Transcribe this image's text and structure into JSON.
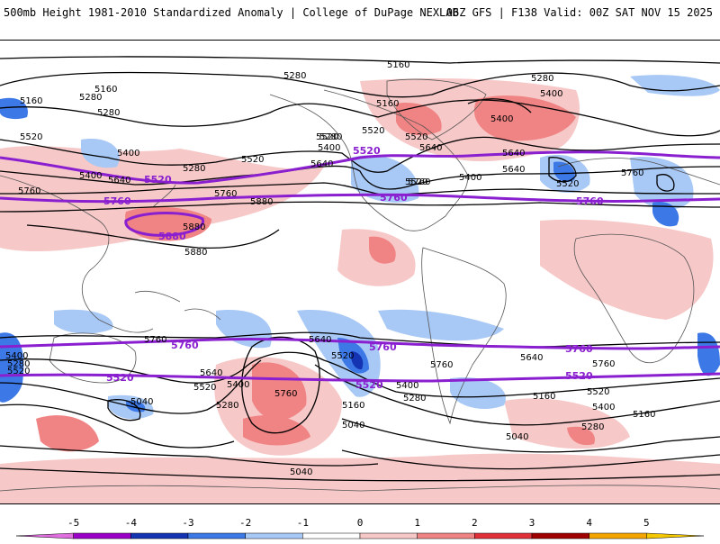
{
  "header": {
    "title": "500mb Height 1981-2010 Standardized Anomaly | College of DuPage NEXLAB",
    "run_info": "06Z GFS | F138 Valid: 00Z SAT NOV 15 2025"
  },
  "map": {
    "contour_labels": [
      "5160",
      "5280",
      "5160",
      "5280",
      "5280",
      "5160",
      "5280",
      "5400",
      "5280",
      "5520",
      "5400",
      "5280",
      "5520",
      "5640",
      "5400",
      "5520",
      "5520",
      "5640",
      "5400",
      "5160",
      "5520",
      "5400",
      "5640",
      "5760",
      "5400",
      "5640",
      "5520",
      "5760",
      "5760",
      "5880",
      "5880",
      "5760",
      "5640",
      "5760",
      "5520",
      "5400",
      "5640",
      "5520",
      "5400",
      "5280",
      "5040",
      "5760",
      "5160",
      "5040",
      "5520",
      "5280",
      "5640",
      "5520",
      "5160",
      "5400",
      "5280",
      "5040",
      "5160",
      "5040",
      "5880",
      "5760",
      "5520",
      "5640",
      "5760",
      "5400",
      "5280"
    ],
    "jet_labels": [
      "5520",
      "5520",
      "5760",
      "5760",
      "5760",
      "5880",
      "5760",
      "5760",
      "5760",
      "5520",
      "5520",
      "5520"
    ]
  },
  "legend": {
    "tick_labels": [
      "-5",
      "-4",
      "-3",
      "-2",
      "-1",
      "0",
      "1",
      "2",
      "3",
      "4",
      "5"
    ],
    "colors": [
      "#e06ee0",
      "#9b00c9",
      "#1434b4",
      "#3c78e6",
      "#a8c8f5",
      "#ffffff",
      "#f7c8c8",
      "#f08484",
      "#e0303a",
      "#a00000",
      "#f5a500",
      "#f5c800"
    ]
  }
}
